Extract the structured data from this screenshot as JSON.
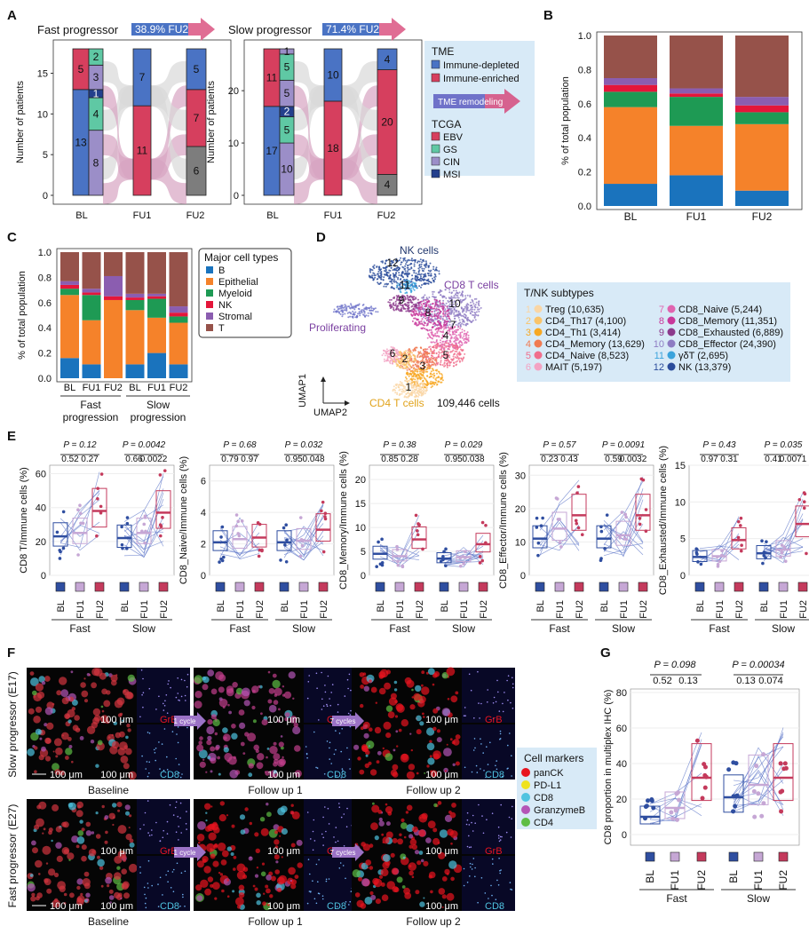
{
  "colors": {
    "immune_depleted": "#4a73c4",
    "immune_enriched": "#d63f5e",
    "ebv": "#d63f5e",
    "gs": "#5fc8a4",
    "cin": "#9b8ec8",
    "msi": "#233f8c",
    "b": "#1a73bd",
    "epithelial": "#f5822a",
    "myeloid": "#1e9a54",
    "nk": "#e4163a",
    "stromal": "#8b5db0",
    "t": "#96524a",
    "bl": "#2f4ea0",
    "fu1": "#c6a7d5",
    "fu2": "#c43a5c",
    "flow": "#d7a4c2",
    "flow_gray": "#d9d9d9"
  },
  "panelA": {
    "label": "A",
    "fast": {
      "title": "Fast progressor",
      "badge": "38.9% FU2",
      "ylabel": "Number of patients",
      "yticks": [
        "0",
        "5",
        "10",
        "15"
      ],
      "xticks": [
        "BL",
        "FU1",
        "FU2"
      ],
      "bl_tme": [
        {
          "v": 13,
          "c": "immune_depleted",
          "label": "13"
        },
        {
          "v": 5,
          "c": "immune_enriched",
          "label": "5"
        }
      ],
      "bl_tcga": [
        {
          "v": 8,
          "c": "cin",
          "label": "8"
        },
        {
          "v": 4,
          "c": "gs",
          "label": "4"
        },
        {
          "v": 1,
          "c": "msi",
          "label": "1"
        },
        {
          "v": 3,
          "c": "cin",
          "label": "3"
        },
        {
          "v": 2,
          "c": "gs",
          "label": "2"
        }
      ],
      "fu1": [
        {
          "v": 11,
          "c": "immune_enriched",
          "label": "11"
        },
        {
          "v": 7,
          "c": "immune_depleted",
          "label": "7"
        }
      ],
      "fu2": [
        {
          "v": 6,
          "c": "gray",
          "label": "6"
        },
        {
          "v": 7,
          "c": "immune_enriched",
          "label": "7"
        },
        {
          "v": 5,
          "c": "immune_depleted",
          "label": "5"
        }
      ],
      "ymax": 18
    },
    "slow": {
      "title": "Slow progressor",
      "badge": "71.4% FU2",
      "ylabel": "Number of patients",
      "yticks": [
        "0",
        "10",
        "20"
      ],
      "xticks": [
        "BL",
        "FU1",
        "FU2"
      ],
      "bl_tme": [
        {
          "v": 17,
          "c": "immune_depleted",
          "label": "17"
        },
        {
          "v": 11,
          "c": "immune_enriched",
          "label": "11"
        }
      ],
      "bl_tcga": [
        {
          "v": 10,
          "c": "cin",
          "label": "10"
        },
        {
          "v": 5,
          "c": "gs",
          "label": "5"
        },
        {
          "v": 2,
          "c": "msi",
          "label": "2"
        },
        {
          "v": 5,
          "c": "cin",
          "label": "5"
        },
        {
          "v": 5,
          "c": "gs",
          "label": "5"
        },
        {
          "v": 1,
          "c": "cin",
          "label": "1"
        }
      ],
      "fu1": [
        {
          "v": 18,
          "c": "immune_enriched",
          "label": "18"
        },
        {
          "v": 10,
          "c": "immune_depleted",
          "label": "10"
        }
      ],
      "fu2": [
        {
          "v": 4,
          "c": "gray",
          "label": "4"
        },
        {
          "v": 20,
          "c": "immune_enriched",
          "label": "20"
        },
        {
          "v": 4,
          "c": "immune_depleted",
          "label": "4"
        }
      ],
      "ymax": 28
    },
    "legend": {
      "tme_title": "TME",
      "tme_items": [
        "Immune-depleted",
        "Immune-enriched"
      ],
      "arrow_label": "TME remodeling",
      "tcga_title": "TCGA",
      "tcga_items": [
        "EBV",
        "GS",
        "CIN",
        "MSI"
      ]
    }
  },
  "panelB": {
    "label": "B",
    "ylabel": "% of total population",
    "yticks": [
      "0.0",
      "0.2",
      "0.4",
      "0.6",
      "0.8",
      "1.0"
    ],
    "chart_data": {
      "type": "bar",
      "stacked": true,
      "categories": [
        "BL",
        "FU1",
        "FU2"
      ],
      "series": [
        {
          "name": "B",
          "values": [
            0.13,
            0.18,
            0.09
          ]
        },
        {
          "name": "Epithelial",
          "values": [
            0.45,
            0.29,
            0.39
          ]
        },
        {
          "name": "Myeloid",
          "values": [
            0.09,
            0.17,
            0.07
          ]
        },
        {
          "name": "NK",
          "values": [
            0.04,
            0.02,
            0.04
          ]
        },
        {
          "name": "Stromal",
          "values": [
            0.04,
            0.03,
            0.05
          ]
        },
        {
          "name": "T",
          "values": [
            0.25,
            0.31,
            0.36
          ]
        }
      ],
      "ylim": [
        0,
        1.0
      ]
    }
  },
  "panelC": {
    "label": "C",
    "ylabel": "% of total population",
    "yticks": [
      "0.0",
      "0.2",
      "0.4",
      "0.6",
      "0.8",
      "1.0"
    ],
    "xticks": [
      "BL",
      "FU1",
      "FU2",
      "BL",
      "FU1",
      "FU2"
    ],
    "groups": [
      "Fast",
      "progression",
      "Slow",
      "progression"
    ],
    "legend_title": "Major cell types",
    "legend_items": [
      "B",
      "Epithelial",
      "Myeloid",
      "NK",
      "Stromal",
      "T"
    ],
    "chart_data": {
      "type": "bar",
      "stacked": true,
      "categories": [
        "Fast BL",
        "Fast FU1",
        "Fast FU2",
        "Slow BL",
        "Slow FU1",
        "Slow FU2"
      ],
      "series": [
        {
          "name": "B",
          "values": [
            0.16,
            0.11,
            0.0,
            0.11,
            0.2,
            0.11
          ]
        },
        {
          "name": "Epithelial",
          "values": [
            0.5,
            0.35,
            0.62,
            0.43,
            0.28,
            0.33
          ]
        },
        {
          "name": "Myeloid",
          "values": [
            0.05,
            0.2,
            0.0,
            0.08,
            0.15,
            0.05
          ]
        },
        {
          "name": "NK",
          "values": [
            0.03,
            0.02,
            0.03,
            0.02,
            0.02,
            0.03
          ]
        },
        {
          "name": "Stromal",
          "values": [
            0.03,
            0.03,
            0.16,
            0.03,
            0.02,
            0.05
          ]
        },
        {
          "name": "T",
          "values": [
            0.23,
            0.29,
            0.19,
            0.33,
            0.33,
            0.43
          ]
        }
      ],
      "ylim": [
        0,
        1.0
      ]
    }
  },
  "panelD": {
    "label": "D",
    "cluster_labels": {
      "nk": "NK cells",
      "cd8": "CD8 T cells",
      "prolif": "Proliferating",
      "cd4": "CD4 T cells",
      "count": "109,446 cells",
      "umap1": "UMAP1",
      "umap2": "UMAP2"
    },
    "cluster_numbers": [
      "1",
      "2",
      "3",
      "4",
      "5",
      "6",
      "7",
      "8",
      "9",
      "10",
      "11",
      "12"
    ],
    "legend_title": "T/NK subtypes",
    "subtypes": [
      {
        "n": "1",
        "name": "Treg (10,635)",
        "c": "#fad6a5"
      },
      {
        "n": "2",
        "name": "CD4_Th17 (4,100)",
        "c": "#f9c46b"
      },
      {
        "n": "3",
        "name": "CD4_Th1 (3,414)",
        "c": "#f7a823"
      },
      {
        "n": "4",
        "name": "CD4_Memory (13,629)",
        "c": "#f07b52"
      },
      {
        "n": "5",
        "name": "CD4_Naive (8,523)",
        "c": "#f06e8c"
      },
      {
        "n": "6",
        "name": "MAIT (5,197)",
        "c": "#f3a3c3"
      },
      {
        "n": "7",
        "name": "CD8_Naive (5,244)",
        "c": "#e065b0"
      },
      {
        "n": "8",
        "name": "CD8_Memory (11,351)",
        "c": "#c8389b"
      },
      {
        "n": "9",
        "name": "CD8_Exhausted (6,889)",
        "c": "#8c3a8c"
      },
      {
        "n": "10",
        "name": "CD8_Effector (24,390)",
        "c": "#8e7cc3"
      },
      {
        "n": "11",
        "name": "γδT (2,695)",
        "c": "#3ba3dc"
      },
      {
        "n": "12",
        "name": "NK (13,379)",
        "c": "#2b4c9b"
      }
    ]
  },
  "panelE": {
    "label": "E",
    "xticks": [
      "BL",
      "FU1",
      "FU2",
      "BL",
      "FU1",
      "FU2"
    ],
    "groups": [
      "Fast",
      "Slow"
    ],
    "plots": [
      {
        "ylabel": "CD8 T/Immune cells (%)",
        "yticks": [
          "0",
          "20",
          "40",
          "60"
        ],
        "ymax": 65,
        "p_top_fast": "P = 0.12",
        "p_fast1": "0.52",
        "p_fast2": "0.27",
        "p_top_slow": "P = 0.0042",
        "p_slow1": "0.66",
        "p_slow2": "0.0022",
        "medians": [
          23,
          25,
          38,
          22,
          25,
          37
        ]
      },
      {
        "ylabel": "CD8_Naive/Immune cells (%)",
        "yticks": [
          "0",
          "2",
          "4",
          "6"
        ],
        "ymax": 7,
        "p_top_fast": "P = 0.68",
        "p_fast1": "0.79",
        "p_fast2": "0.97",
        "p_top_slow": "P = 0.032",
        "p_slow1": "0.95",
        "p_slow2": "0.048",
        "medians": [
          2.1,
          2.3,
          2.4,
          2.1,
          2.2,
          2.9
        ]
      },
      {
        "ylabel": "CD8_Memory/Immune cells (%)",
        "yticks": [
          "0",
          "5",
          "10",
          "15",
          "20"
        ],
        "ymax": 23,
        "p_top_fast": "P = 0.38",
        "p_fast1": "0.85",
        "p_fast2": "0.28",
        "p_top_slow": "P = 0.029",
        "p_slow1": "0.95",
        "p_slow2": "0.038",
        "medians": [
          4.5,
          4,
          7.5,
          3.5,
          3.8,
          6.5
        ]
      },
      {
        "ylabel": "CD8_Effector/Immune cells (%)",
        "yticks": [
          "0",
          "10",
          "20",
          "30"
        ],
        "ymax": 33,
        "p_top_fast": "P = 0.57",
        "p_fast1": "0.23",
        "p_fast2": "0.43",
        "p_top_slow": "P = 0.0091",
        "p_slow1": "0.59",
        "p_slow2": "0.0032",
        "medians": [
          11,
          14,
          18,
          11,
          12,
          18
        ]
      },
      {
        "ylabel": "CD8_Exhausted/Immune cells (%)",
        "yticks": [
          "0",
          "5",
          "10",
          "15"
        ],
        "ymax": 15,
        "p_top_fast": "P = 0.43",
        "p_fast1": "0.97",
        "p_fast2": "0.31",
        "p_top_slow": "P = 0.035",
        "p_slow1": "0.41",
        "p_slow2": "0.0071",
        "medians": [
          2.5,
          2.6,
          4.8,
          3,
          3.5,
          7
        ]
      }
    ]
  },
  "panelF": {
    "label": "F",
    "rows": [
      "Slow progressor (E17)",
      "Fast progressor (E27)"
    ],
    "captions": [
      "Baseline",
      "Follow up 1",
      "Follow up 2"
    ],
    "scale": "100 μm",
    "grb": "GrB",
    "cd8": "CD8",
    "cycles1": "1 cycle",
    "cycles7": "7 cycles",
    "legend_title": "Cell markers",
    "markers": [
      {
        "name": "panCK",
        "c": "#e8141f"
      },
      {
        "name": "PD-L1",
        "c": "#efe21e"
      },
      {
        "name": "CD8",
        "c": "#4fc3e0"
      },
      {
        "name": "GranzymeB",
        "c": "#b455b6"
      },
      {
        "name": "CD4",
        "c": "#5ebd45"
      }
    ]
  },
  "panelG": {
    "label": "G",
    "ylabel": "CD8 proportion in multiplex IHC (%)",
    "yticks": [
      "0",
      "20",
      "40",
      "60",
      "80"
    ],
    "xticks": [
      "BL",
      "FU1",
      "FU2",
      "BL",
      "FU1",
      "FU2"
    ],
    "groups": [
      "Fast",
      "Slow"
    ],
    "p_top_fast": "P = 0.098",
    "p_fast1": "0.52",
    "p_fast2": "0.13",
    "p_top_slow": "P = 0.00034",
    "p_slow1": "0.13",
    "p_slow2": "0.074",
    "medians": [
      10,
      15,
      32,
      21,
      28,
      32
    ]
  }
}
